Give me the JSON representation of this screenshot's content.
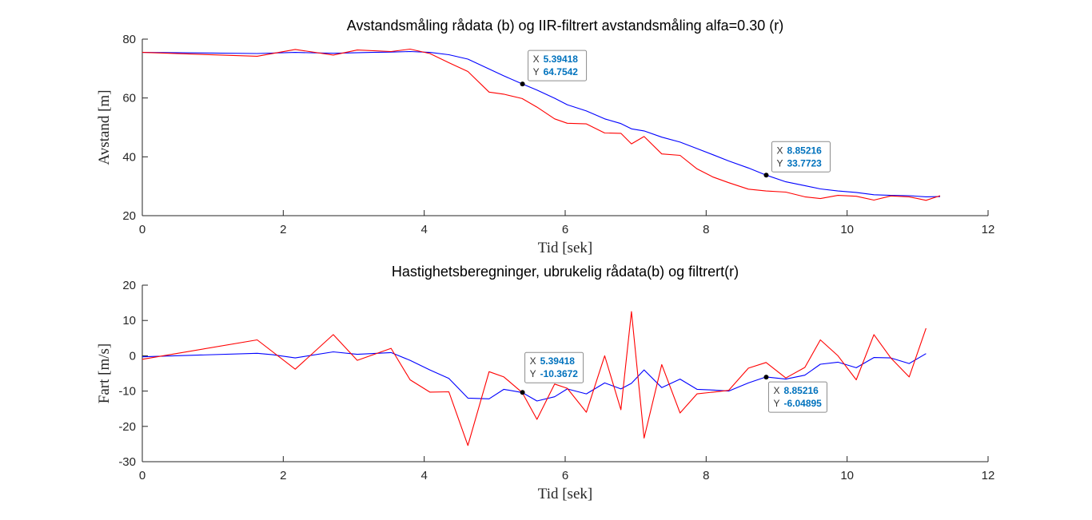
{
  "colors": {
    "blue": "#0000ff",
    "red": "#ff0000",
    "axis": "#262626",
    "datatip_value": "#0072BD"
  },
  "chart_data": [
    {
      "type": "line",
      "title": "Avstandsmåling rådata (b) og IIR-filtrert avstandsmåling alfa=0.30 (r)",
      "xlabel": "Tid [sek]",
      "ylabel": "Avstand [m]",
      "xlim": [
        0,
        12
      ],
      "ylim": [
        20,
        80
      ],
      "xticks": [
        0,
        2,
        4,
        6,
        8,
        10,
        12
      ],
      "yticks": [
        20,
        40,
        60,
        80
      ],
      "grid": false,
      "series": [
        {
          "color": "blue",
          "x": [
            0,
            1.63,
            2.17,
            2.71,
            3.25,
            3.53,
            3.8,
            4.08,
            4.35,
            4.62,
            5.13,
            5.39,
            5.6,
            5.85,
            6.03,
            6.3,
            6.56,
            6.79,
            6.94,
            7.12,
            7.37,
            7.63,
            7.87,
            8.1,
            8.32,
            8.6,
            8.85,
            9.13,
            9.4,
            9.62,
            9.87,
            10.13,
            10.38,
            10.62,
            10.88,
            11.12,
            11.32
          ],
          "y": [
            75.5,
            75.1,
            75.5,
            75.2,
            75.5,
            75.6,
            75.8,
            75.5,
            74.7,
            73.2,
            67.5,
            64.8,
            62.7,
            59.9,
            57.7,
            55.6,
            52.9,
            51.3,
            49.5,
            48.8,
            46.7,
            45.0,
            42.8,
            40.7,
            38.6,
            36.2,
            33.8,
            31.5,
            30.2,
            29.1,
            28.4,
            27.9,
            27.1,
            26.9,
            26.8,
            26.4,
            26.5
          ]
        },
        {
          "color": "red",
          "x": [
            0,
            1.63,
            2.17,
            2.71,
            3.05,
            3.53,
            3.8,
            4.08,
            4.35,
            4.62,
            4.92,
            5.13,
            5.39,
            5.6,
            5.85,
            6.03,
            6.3,
            6.56,
            6.79,
            6.94,
            7.12,
            7.37,
            7.63,
            7.87,
            8.1,
            8.32,
            8.6,
            8.85,
            9.13,
            9.4,
            9.62,
            9.87,
            10.13,
            10.38,
            10.62,
            10.88,
            11.12,
            11.32
          ],
          "y": [
            75.5,
            74.2,
            76.5,
            74.6,
            76.3,
            75.8,
            76.6,
            75.1,
            72.0,
            69.0,
            62.0,
            61.3,
            59.8,
            56.9,
            52.9,
            51.4,
            51.2,
            48.1,
            48.0,
            44.4,
            46.9,
            41.0,
            40.5,
            35.9,
            33.1,
            31.2,
            29.0,
            28.4,
            28.0,
            26.4,
            25.8,
            26.9,
            26.6,
            25.3,
            26.7,
            26.4,
            25.2,
            26.8
          ]
        }
      ],
      "datatips": [
        {
          "x_label": "X",
          "y_label": "Y",
          "x": 5.39418,
          "y": 64.7542,
          "x_text": "5.39418",
          "y_text": "64.7542"
        },
        {
          "x_label": "X",
          "y_label": "Y",
          "x": 8.85216,
          "y": 33.7723,
          "x_text": "8.85216",
          "y_text": "33.7723"
        }
      ]
    },
    {
      "type": "line",
      "title": "Hastighetsberegninger, ubrukelig rådata(b) og filtrert(r)",
      "xlabel": "Tid [sek]",
      "ylabel": "Fart [m/s]",
      "xlim": [
        0,
        12
      ],
      "ylim": [
        -30,
        20
      ],
      "xticks": [
        0,
        2,
        4,
        6,
        8,
        10,
        12
      ],
      "yticks": [
        -30,
        -20,
        -10,
        0,
        10,
        20
      ],
      "grid": false,
      "series": [
        {
          "color": "blue",
          "x": [
            0,
            1.63,
            1.85,
            2.17,
            2.71,
            3.05,
            3.53,
            3.8,
            4.08,
            4.35,
            4.62,
            4.92,
            5.13,
            5.39,
            5.6,
            5.85,
            6.03,
            6.3,
            6.56,
            6.79,
            6.94,
            7.12,
            7.37,
            7.63,
            7.87,
            8.1,
            8.32,
            8.6,
            8.85,
            9.13,
            9.4,
            9.62,
            9.87,
            10.13,
            10.38,
            10.62,
            10.88,
            11.12
          ],
          "y": [
            -0.3,
            0.7,
            0.3,
            -0.6,
            1.1,
            0.4,
            0.9,
            -1.3,
            -4.0,
            -6.4,
            -12.0,
            -12.2,
            -9.5,
            -10.4,
            -12.8,
            -11.6,
            -9.4,
            -10.8,
            -7.7,
            -9.4,
            -7.8,
            -4.0,
            -9.0,
            -6.6,
            -9.5,
            -9.7,
            -10.0,
            -7.7,
            -6.0,
            -6.6,
            -5.5,
            -2.4,
            -1.8,
            -3.4,
            -0.5,
            -0.6,
            -2.2,
            0.6
          ]
        },
        {
          "color": "red",
          "x": [
            0,
            1.63,
            2.17,
            2.71,
            3.05,
            3.53,
            3.8,
            4.08,
            4.35,
            4.62,
            4.92,
            5.13,
            5.39,
            5.6,
            5.85,
            6.03,
            6.3,
            6.56,
            6.79,
            6.94,
            7.12,
            7.37,
            7.63,
            7.87,
            8.1,
            8.32,
            8.6,
            8.85,
            9.13,
            9.4,
            9.62,
            9.87,
            10.13,
            10.38,
            10.62,
            10.88,
            11.12
          ],
          "y": [
            -1.0,
            4.5,
            -3.8,
            6.0,
            -1.3,
            2.1,
            -6.8,
            -10.3,
            -10.2,
            -25.4,
            -4.5,
            -6.0,
            -10.4,
            -18.0,
            -8.0,
            -9.2,
            -16.0,
            0.0,
            -15.3,
            12.5,
            -23.3,
            -2.5,
            -16.2,
            -10.8,
            -10.3,
            -9.8,
            -3.5,
            -1.9,
            -6.3,
            -3.3,
            4.5,
            0.0,
            -6.8,
            6.0,
            -0.6,
            -6.0,
            7.8
          ]
        }
      ],
      "datatips": [
        {
          "x_label": "X",
          "y_label": "Y",
          "x": 5.39418,
          "y": -10.3672,
          "x_text": "5.39418",
          "y_text": "-10.3672"
        },
        {
          "x_label": "X",
          "y_label": "Y",
          "x": 8.85216,
          "y": -6.04895,
          "x_text": "8.85216",
          "y_text": "-6.04895"
        }
      ]
    }
  ]
}
